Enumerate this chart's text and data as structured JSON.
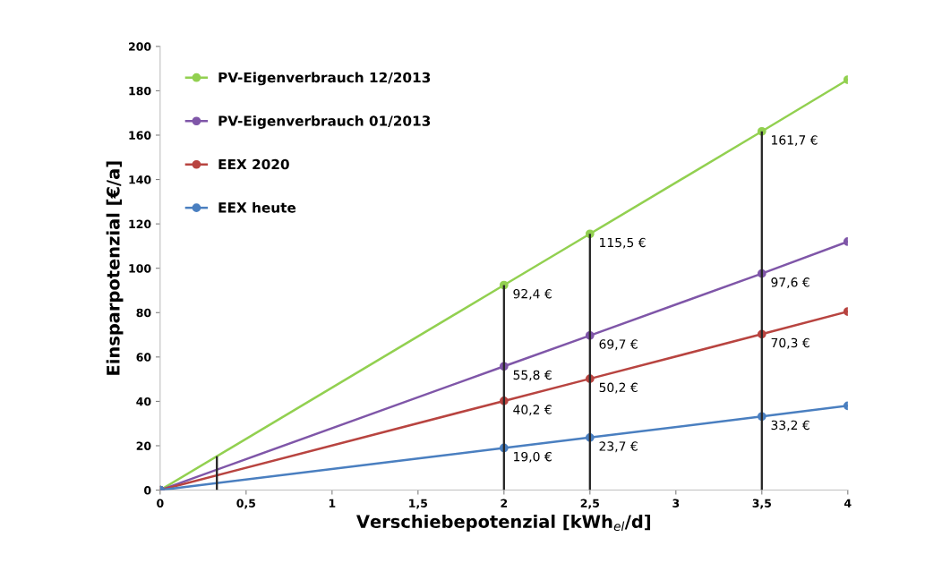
{
  "chart_data": {
    "type": "line",
    "xlabel": "Verschiebepotenzial [kWh$_{el}$/d]",
    "ylabel": "Einsparpotenzial [€/a]",
    "xlim": [
      0,
      4
    ],
    "xticks": [
      0,
      {
        "value": 0.5,
        "label": "0,5"
      },
      1,
      {
        "value": 1.5,
        "label": "1,5"
      },
      2,
      {
        "value": 2.5,
        "label": "2,5"
      },
      3,
      {
        "value": 3.5,
        "label": "3,5"
      },
      4
    ],
    "ylim": [
      0,
      200
    ],
    "yticks": [
      0,
      20,
      40,
      60,
      80,
      100,
      120,
      140,
      160,
      180,
      200
    ],
    "grid": false,
    "legend": "top left",
    "marker": "circle",
    "line_style": "solid",
    "series": [
      {
        "type": "bar",
        "color": "#262626",
        "x": [
          0.33,
          2,
          2.5,
          3.5
        ],
        "values": [
          15.3,
          92.4,
          115.5,
          161.7
        ]
      },
      {
        "name": "PV-Eigenverbrauch 12/2013",
        "color": "#92d050",
        "x": [
          0,
          2,
          2.5,
          3.5,
          4
        ],
        "values": [
          0,
          92.4,
          115.5,
          161.7,
          185
        ],
        "value_labels": [
          null,
          "92,4 €",
          "115,5 €",
          "161,7 €",
          null
        ]
      },
      {
        "name": "PV-Eigenverbrauch 01/2013",
        "color": "#7f56a8",
        "x": [
          0,
          2,
          2.5,
          3.5,
          4
        ],
        "values": [
          0,
          55.8,
          69.7,
          97.6,
          112
        ],
        "value_labels": [
          null,
          "55,8 €",
          "69,7 €",
          "97,6 €",
          null
        ]
      },
      {
        "name": "EEX 2020",
        "color": "#b84440",
        "x": [
          0,
          2,
          2.5,
          3.5,
          4
        ],
        "values": [
          0,
          40.2,
          50.2,
          70.3,
          80.5
        ],
        "value_labels": [
          null,
          "40,2 €",
          "50,2 €",
          "70,3 €",
          null
        ]
      },
      {
        "name": "EEX heute",
        "color": "#4a7fc0",
        "x": [
          0,
          2,
          2.5,
          3.5,
          4
        ],
        "values": [
          0,
          19.0,
          23.7,
          33.2,
          38
        ],
        "value_labels": [
          null,
          "19,0 €",
          "23,7 €",
          "33,2 €",
          null
        ]
      }
    ]
  }
}
